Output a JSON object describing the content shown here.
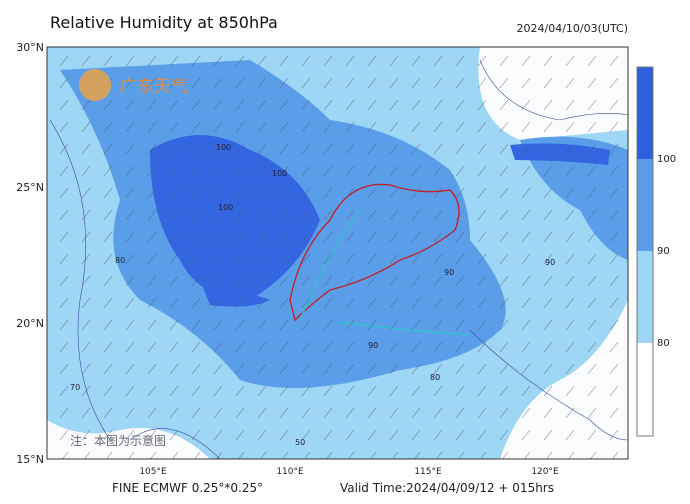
{
  "header": {
    "title": "Relative Humidity at 850hPa",
    "timestamp": "2024/04/10/03(UTC)"
  },
  "map": {
    "lat_labels": [
      "30°N",
      "25°N",
      "20°N",
      "15°N"
    ],
    "lon_labels": [
      "105°E",
      "110°E",
      "115°E",
      "120°E"
    ],
    "logo": "广东天气",
    "note": "注：本图为示意图",
    "contour_labels": [
      "100",
      "100",
      "100",
      "90",
      "90",
      "80",
      "90",
      "80",
      "50",
      "70"
    ]
  },
  "colorbar": {
    "labels": [
      "100",
      "90",
      "80"
    ]
  },
  "footer": {
    "model": "FINE ECMWF 0.25°*0.25°",
    "valid_time": "Valid Time:2024/04/09/12 + 015hrs"
  }
}
